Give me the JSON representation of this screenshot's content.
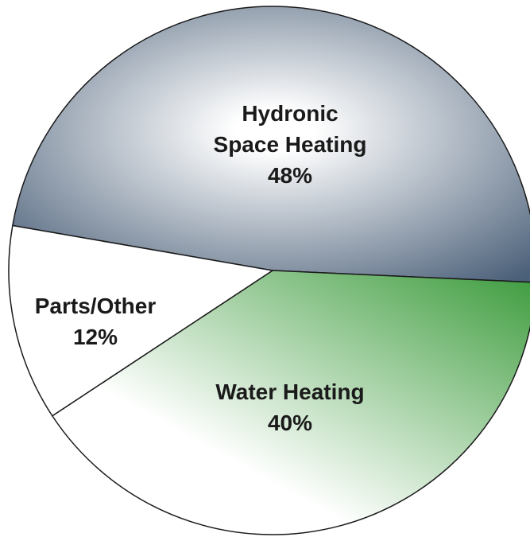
{
  "chart_data": {
    "type": "pie",
    "categories": [
      "Hydronic Space Heating",
      "Water Heating",
      "Parts/Other"
    ],
    "values": [
      48,
      40,
      12
    ],
    "value_labels": [
      "48%",
      "40%",
      "12%"
    ],
    "colors": [
      "#4a5f78",
      "#3a9a3a",
      "#ffffff"
    ]
  }
}
